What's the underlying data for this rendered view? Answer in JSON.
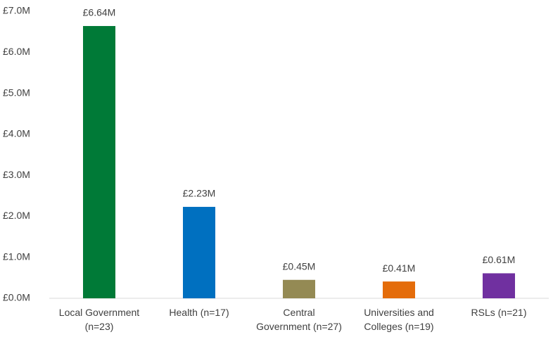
{
  "chart_data": {
    "type": "bar",
    "categories": [
      "Local Government (n=23)",
      "Health (n=17)",
      "Central Government (n=27)",
      "Universities and Colleges (n=19)",
      "RSLs (n=21)"
    ],
    "values": [
      6.64,
      2.23,
      0.45,
      0.41,
      0.61
    ],
    "value_labels": [
      "£6.64M",
      "£2.23M",
      "£0.45M",
      "£0.41M",
      "£0.61M"
    ],
    "colors": [
      "#007a37",
      "#0070c0",
      "#948a54",
      "#e46c0a",
      "#7030a0"
    ],
    "ylim": [
      0,
      7
    ],
    "yticks": [
      {
        "value": 0,
        "label": "£0.0M"
      },
      {
        "value": 1,
        "label": "£1.0M"
      },
      {
        "value": 2,
        "label": "£2.0M"
      },
      {
        "value": 3,
        "label": "£3.0M"
      },
      {
        "value": 4,
        "label": "£4.0M"
      },
      {
        "value": 5,
        "label": "£5.0M"
      },
      {
        "value": 6,
        "label": "£6.0M"
      },
      {
        "value": 7,
        "label": "£7.0M"
      }
    ],
    "grid": false
  }
}
